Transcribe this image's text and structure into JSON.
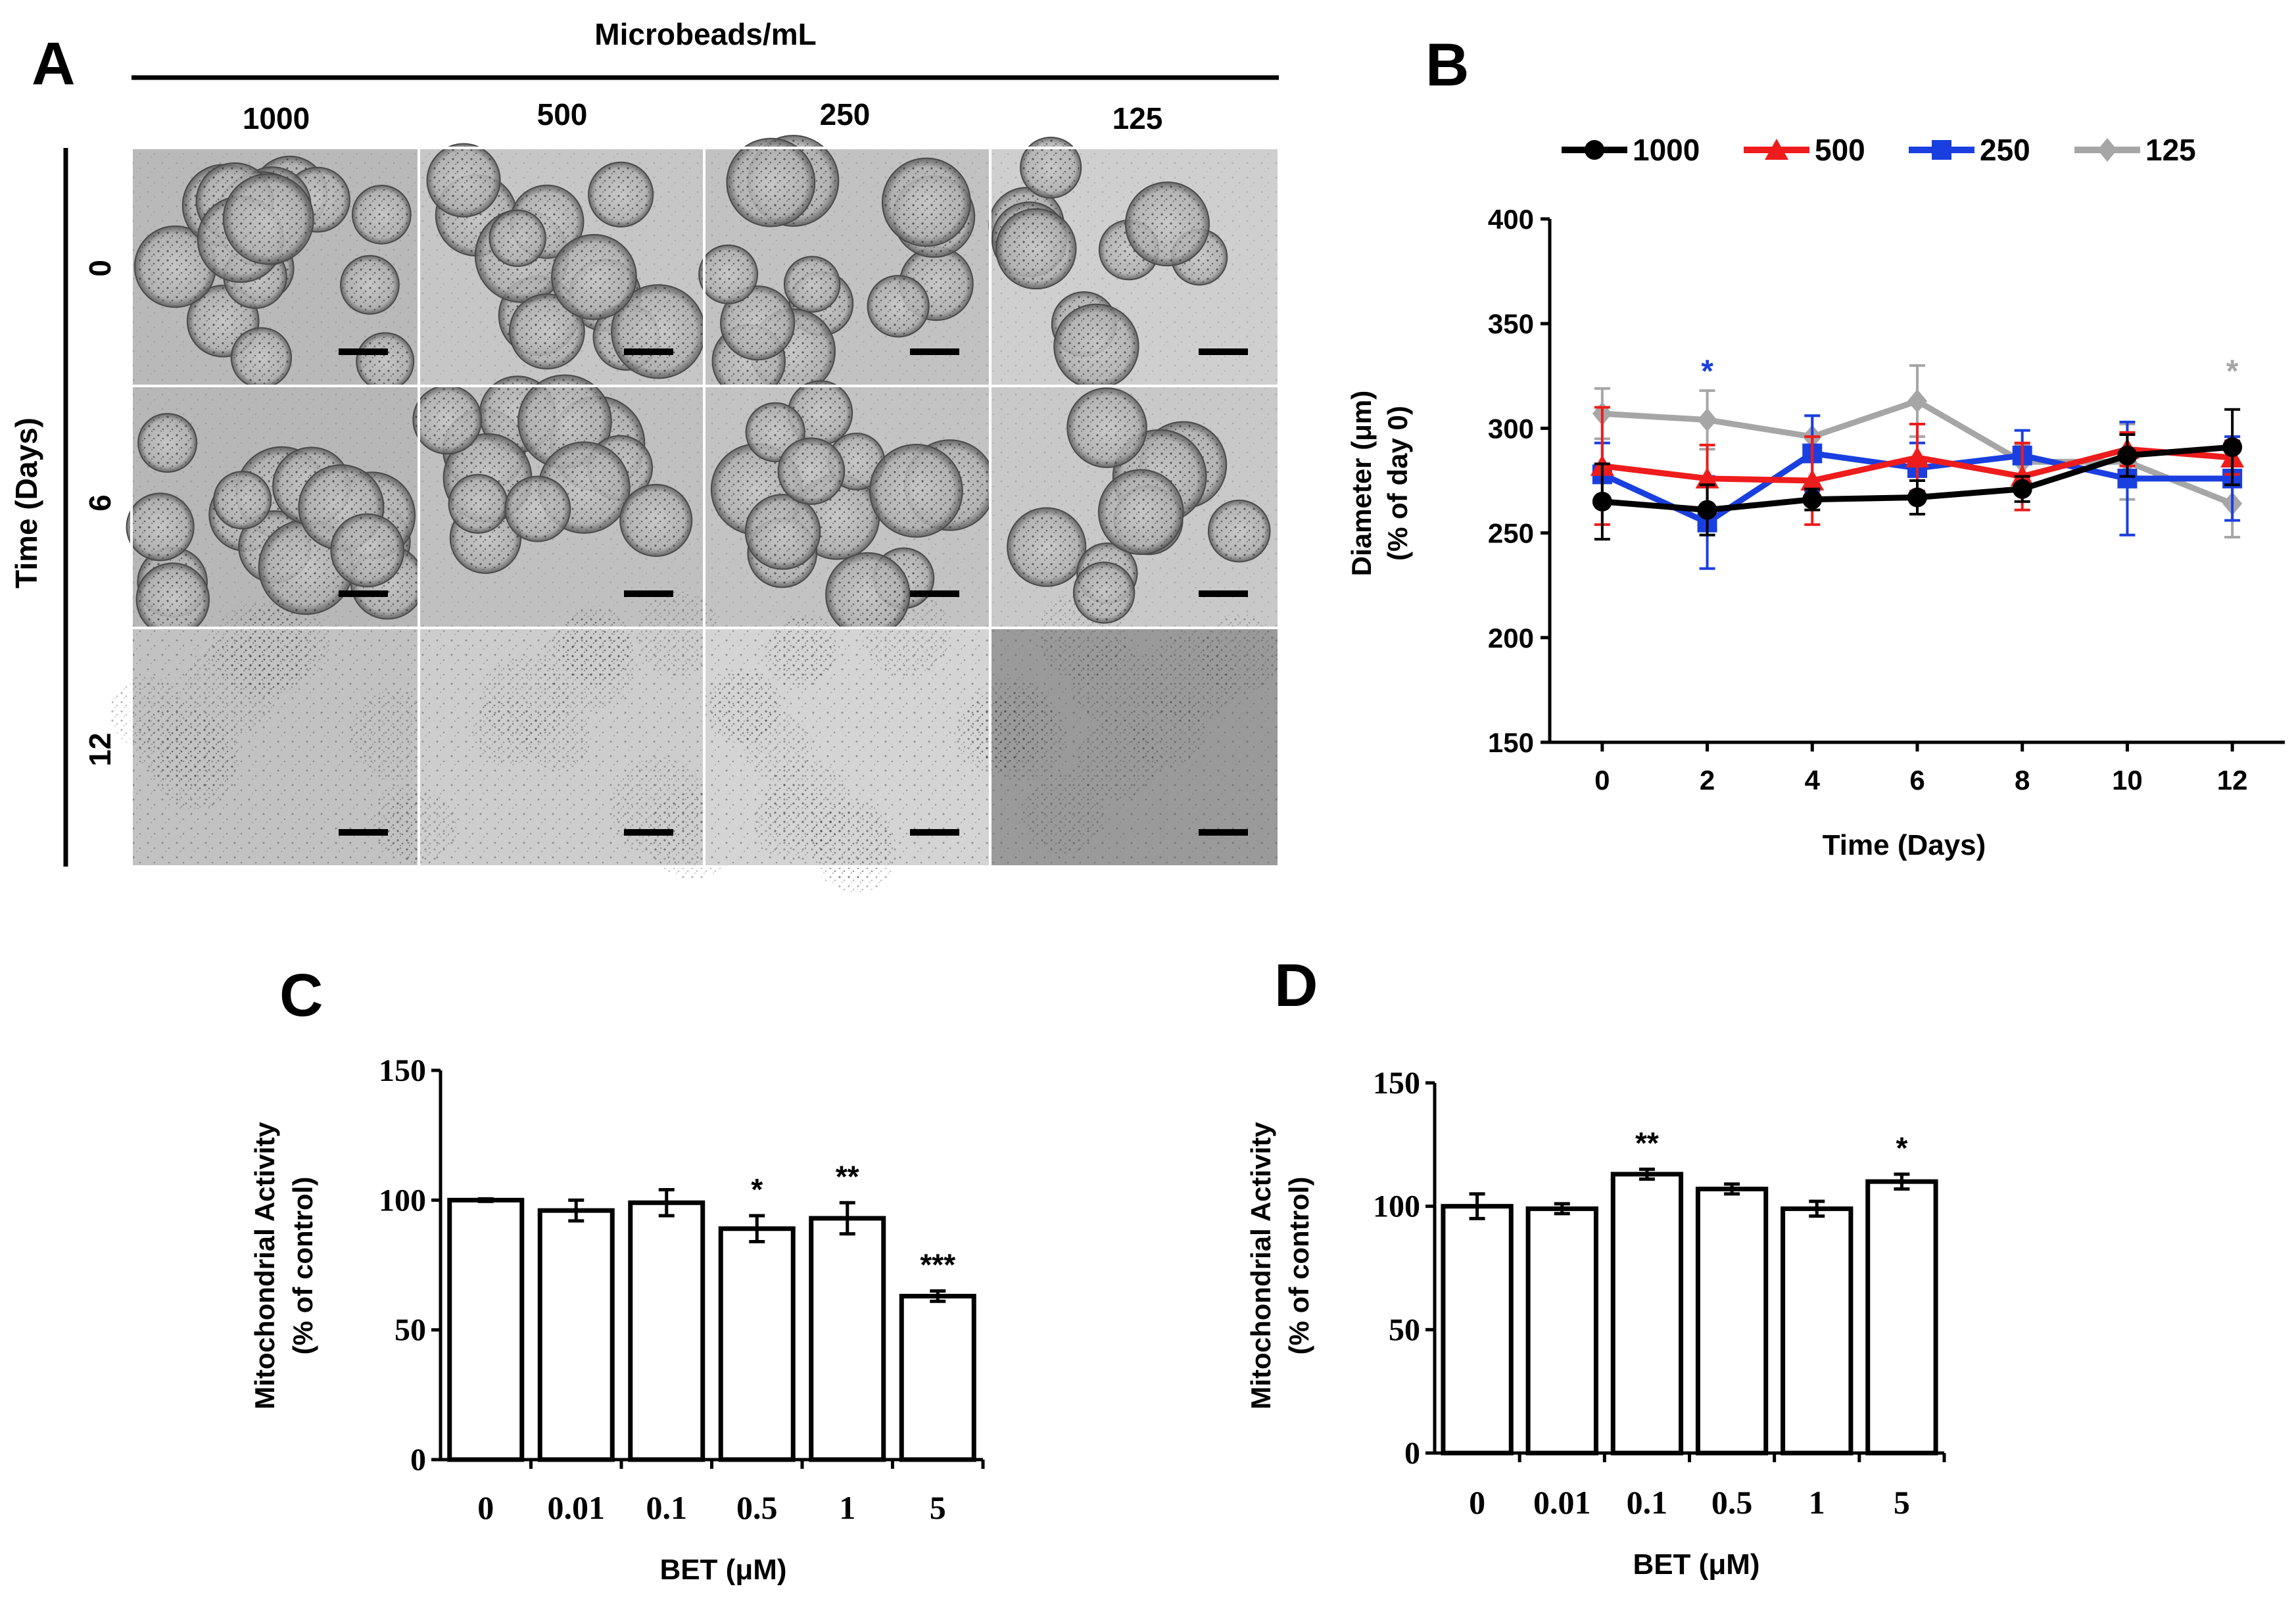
{
  "colors": {
    "1000": "#000000",
    "500": "#ee1c1c",
    "250": "#1a3fe0",
    "125": "#a6a6a6"
  },
  "panel_a": {
    "letter": "A",
    "top_title": "Microbeads/mL",
    "columns": [
      "1000",
      "500",
      "250",
      "125"
    ],
    "row_title": "Time (Days)",
    "rows": [
      "0",
      "6",
      "12"
    ],
    "image_description": "brightfield micrographs of cell-laden alginate microbeads with scale bars"
  },
  "panel_b": {
    "letter": "B"
  },
  "panel_c": {
    "letter": "C"
  },
  "panel_d": {
    "letter": "D"
  },
  "chart_data": [
    {
      "id": "B",
      "type": "line",
      "title": "",
      "xlabel": "Time (Days)",
      "ylabel": "Diameter (μm)",
      "ylabel2": "(% of day 0)",
      "x": [
        0,
        2,
        4,
        6,
        8,
        10,
        12
      ],
      "xlim": [
        -1,
        13
      ],
      "ylim": [
        150,
        400
      ],
      "yticks": [
        150,
        200,
        250,
        300,
        350,
        400
      ],
      "xticks": [
        0,
        2,
        4,
        6,
        8,
        10,
        12
      ],
      "legend": "top",
      "series": [
        {
          "name": "1000",
          "color": "#000000",
          "marker": "circle",
          "values": [
            265,
            261,
            266,
            267,
            271,
            287,
            291
          ],
          "errors": [
            18,
            12,
            5,
            8,
            6,
            10,
            18
          ]
        },
        {
          "name": "500",
          "color": "#ee1c1c",
          "marker": "triangle",
          "values": [
            282,
            276,
            275,
            286,
            277,
            290,
            286
          ],
          "errors": [
            28,
            16,
            21,
            16,
            16,
            8,
            8
          ]
        },
        {
          "name": "250",
          "color": "#1a3fe0",
          "marker": "square",
          "values": [
            278,
            255,
            288,
            281,
            287,
            276,
            276
          ],
          "errors": [
            15,
            22,
            18,
            12,
            12,
            27,
            20
          ]
        },
        {
          "name": "125",
          "color": "#a6a6a6",
          "marker": "diamond",
          "values": [
            307,
            304,
            296,
            313,
            284,
            284,
            264
          ],
          "errors": [
            12,
            14,
            10,
            17,
            8,
            18,
            16
          ]
        }
      ],
      "annotations": [
        {
          "x": 2,
          "text": "*",
          "color": "#1a3fe0",
          "y": 331
        },
        {
          "x": 12,
          "text": "*",
          "color": "#a6a6a6",
          "y": 331
        }
      ]
    },
    {
      "id": "C",
      "type": "bar",
      "title": "",
      "xlabel": "BET (μM)",
      "ylabel": "Mitochondrial Activity",
      "ylabel2": "(% of control)",
      "categories": [
        "0",
        "0.01",
        "0.1",
        "0.5",
        "1",
        "5"
      ],
      "values": [
        100,
        96,
        99,
        89,
        93,
        63
      ],
      "errors": [
        0.5,
        4,
        5,
        5,
        6,
        2
      ],
      "significance": [
        "",
        "",
        "",
        "*",
        "**",
        "***"
      ],
      "ylim": [
        0,
        150
      ],
      "yticks": [
        0,
        50,
        100,
        150
      ]
    },
    {
      "id": "D",
      "type": "bar",
      "title": "",
      "xlabel": "BET (μM)",
      "ylabel": "Mitochondrial Activity",
      "ylabel2": "(% of control)",
      "categories": [
        "0",
        "0.01",
        "0.1",
        "0.5",
        "1",
        "5"
      ],
      "values": [
        100,
        99,
        113,
        107,
        99,
        110
      ],
      "errors": [
        5,
        2,
        2,
        2,
        3,
        3
      ],
      "significance": [
        "",
        "",
        "**",
        "",
        "",
        "*"
      ],
      "ylim": [
        0,
        150
      ],
      "yticks": [
        0,
        50,
        100,
        150
      ]
    }
  ]
}
